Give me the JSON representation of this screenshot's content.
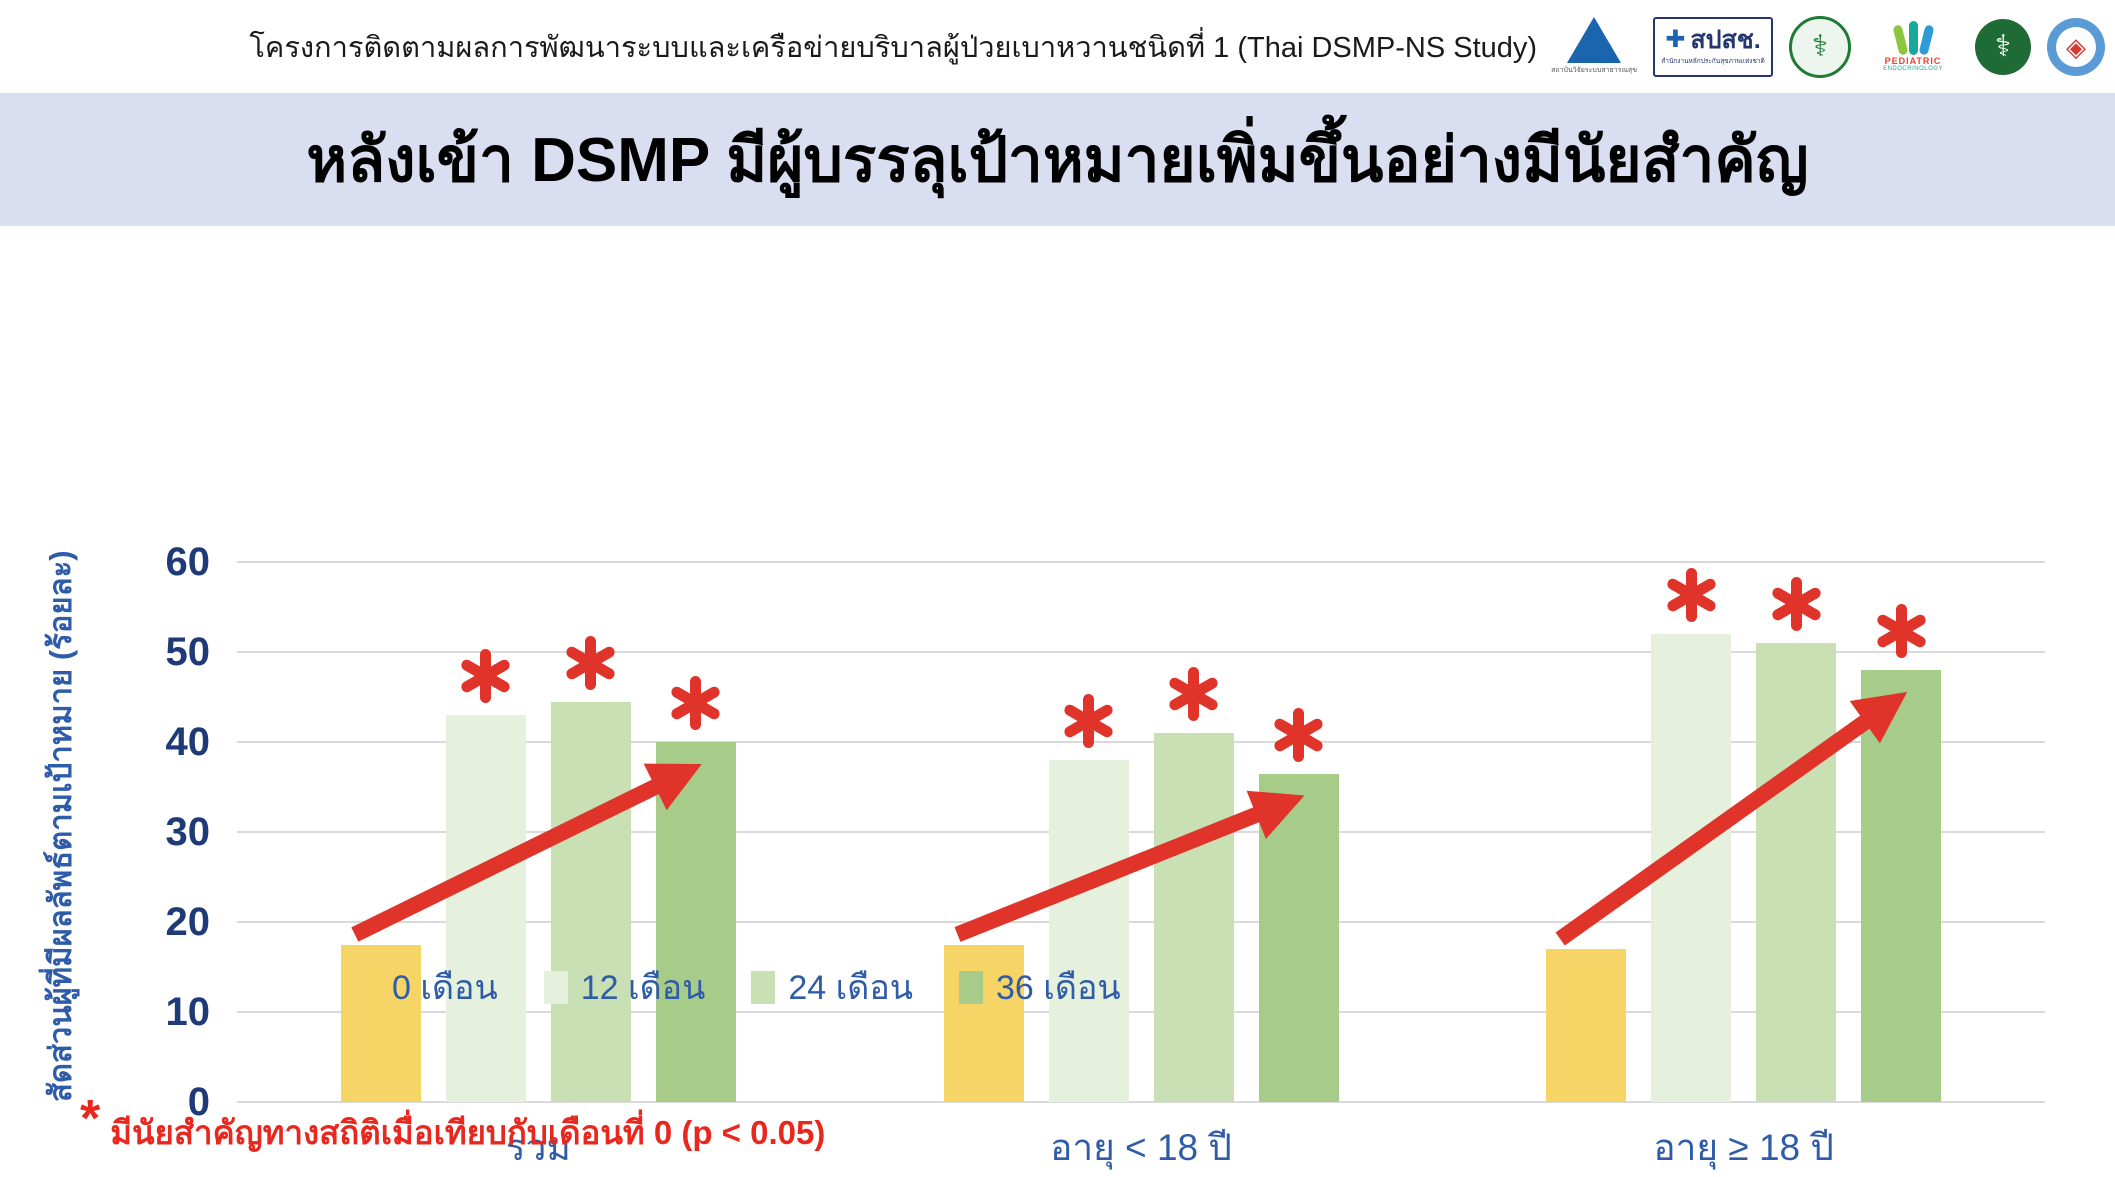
{
  "header": {
    "project_title": "โครงการติดตามผลการพัฒนาระบบและเครือข่ายบริบาลผู้ป่วยเบาหวานชนิดที่ 1 (Thai DSMP-NS Study)",
    "logos": [
      {
        "name": "hsri-logo",
        "caption": "สถาบันวิจัยระบบสาธารณสุข"
      },
      {
        "name": "nhso-logo",
        "text": "สปสช.",
        "cross": "✚",
        "caption": "สำนักงานหลักประกันสุขภาพแห่งชาติ"
      },
      {
        "name": "medical-association-seal-logo",
        "glyph": "⚕"
      },
      {
        "name": "pediatric-endocrinology-society-logo",
        "text": "PEDIATRIC",
        "text2": "ENDOCRINOLOGY"
      },
      {
        "name": "ministry-of-public-health-logo",
        "glyph": "⚕"
      },
      {
        "name": "t1ddar-cn-logo",
        "glyph": "◈"
      }
    ]
  },
  "banner": {
    "title": "หลังเข้า DSMP มีผู้บรรลุเป้าหมายเพิ่มขึ้นอย่างมีนัยสำคัญ"
  },
  "chart_data": {
    "type": "bar",
    "title": "หลังเข้า DSMP มีผู้บรรลุเป้าหมายเพิ่มขึ้นอย่างมีนัยสำคัญ",
    "categories": [
      "รวม",
      "อายุ < 18 ปี",
      "อายุ ≥ 18 ปี"
    ],
    "series": [
      {
        "name": "0 เดือน",
        "color": "#F6D465",
        "starred": false,
        "values": [
          17.5,
          17.5,
          17.0
        ]
      },
      {
        "name": "12 เดือน",
        "color": "#E5F0DD",
        "starred": true,
        "values": [
          43.0,
          38.0,
          52.0
        ]
      },
      {
        "name": "24 เดือน",
        "color": "#C9DFB4",
        "starred": true,
        "values": [
          44.5,
          41.0,
          51.0
        ]
      },
      {
        "name": "36 เดือน",
        "color": "#A7CB89",
        "starred": true,
        "values": [
          40.0,
          36.5,
          48.0
        ]
      }
    ],
    "ylabel": "สัดส่วนผู้ที่มีผลลัพธ์ตามเป้าหมาย  (ร้อยละ)",
    "xlabel": "",
    "ylim": [
      0,
      60
    ],
    "yticks": [
      0,
      10,
      20,
      30,
      40,
      50,
      60
    ],
    "grid": true,
    "legend_position": "bottom",
    "significance_marker": "*",
    "significance_color": "#E0342A",
    "trend_arrow": {
      "from_series": 0,
      "to_series": 3,
      "color": "#E0342A"
    }
  },
  "footnote": {
    "marker": "*",
    "text": "มีนัยสำคัญทางสถิติเมื่อเทียบกับเดือนที่ 0 (p < 0.05)"
  },
  "colors": {
    "banner_background": "#D9DEF0",
    "axis_text": "#1E3B77",
    "label_text": "#2F5CA8",
    "gridline": "#DADADA",
    "arrow_red": "#E0342A",
    "footnote_red": "#E8271E"
  }
}
